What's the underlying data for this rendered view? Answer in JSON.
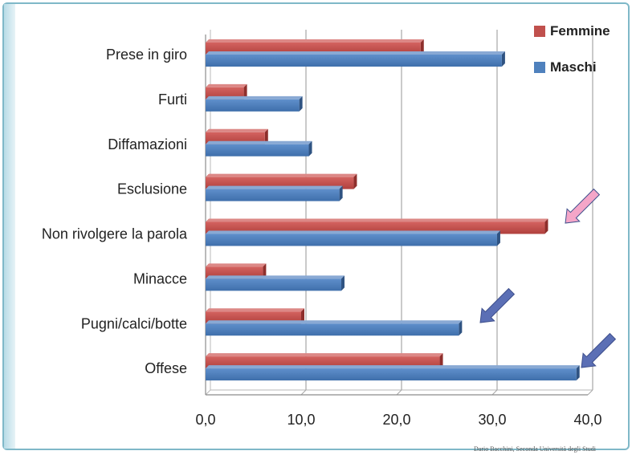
{
  "chart_data": {
    "type": "bar",
    "orientation": "horizontal",
    "categories": [
      "Prese in giro",
      "Furti",
      "Diffamazioni",
      "Esclusione",
      "Non rivolgere la parola",
      "Minacce",
      "Pugni/calci/botte",
      "Offese"
    ],
    "series": [
      {
        "name": "Femmine",
        "color": "#c0504d",
        "values": [
          22.5,
          4.0,
          6.2,
          15.5,
          35.5,
          6.0,
          10.0,
          24.5
        ]
      },
      {
        "name": "Maschi",
        "color": "#4f81bd",
        "values": [
          31.0,
          9.8,
          10.8,
          14.0,
          30.5,
          14.2,
          26.5,
          38.8
        ]
      }
    ],
    "xlim": [
      0,
      40
    ],
    "xticks": [
      "0,0",
      "10,0",
      "20,0",
      "30,0",
      "40,0"
    ],
    "xtick_values": [
      0,
      10,
      20,
      30,
      40
    ],
    "grid": true,
    "legend_position": "top-right",
    "annotations": [
      {
        "type": "arrow",
        "color": "#f4a6c8",
        "target": "Non rivolgere la parola"
      },
      {
        "type": "arrow",
        "color": "#5b6fb5",
        "target": "Pugni/calci/botte"
      },
      {
        "type": "arrow",
        "color": "#5b6fb5",
        "target": "Offese"
      }
    ]
  },
  "footer_credit": "Dario Bacchini, Seconda Università degli Studi"
}
